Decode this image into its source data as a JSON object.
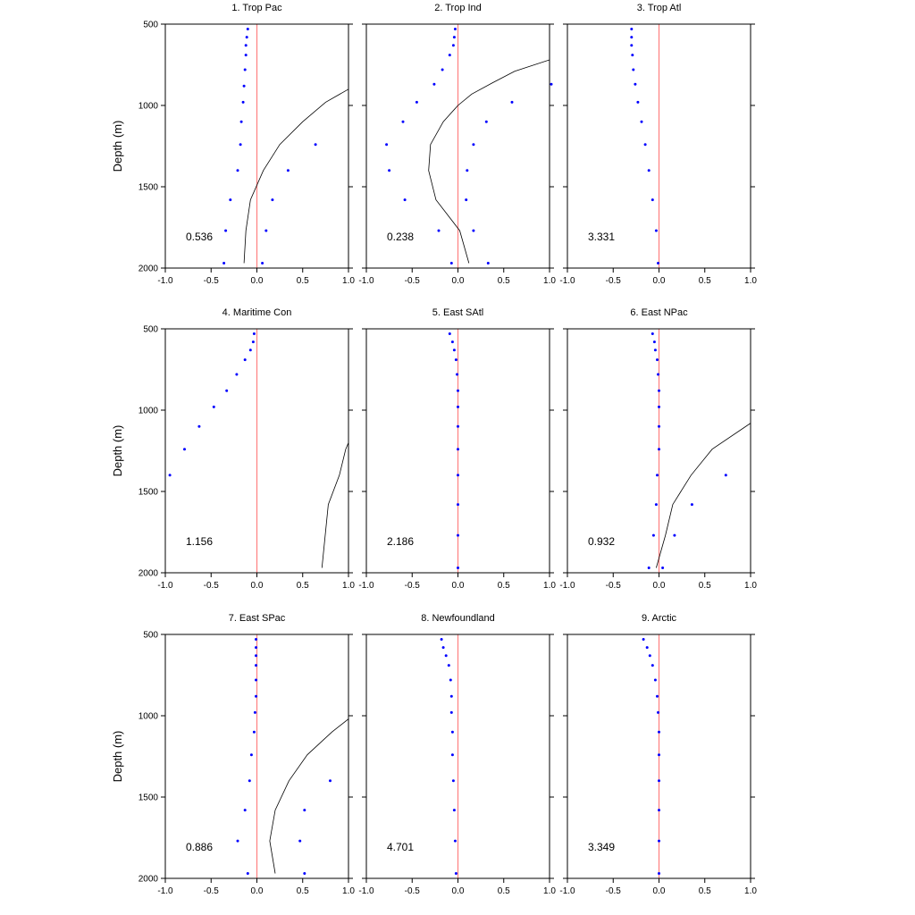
{
  "chart_data": {
    "type": "scatter",
    "ylabel": "Depth (m)",
    "xlim": [
      -1.0,
      1.0
    ],
    "ylim": [
      500,
      2000
    ],
    "y_inverted": true,
    "x_ticks": [
      "-1.0",
      "-0.5",
      "0.0",
      "0.5",
      "1.0"
    ],
    "y_ticks": [
      "500",
      "1000",
      "1500",
      "2000"
    ],
    "colors": {
      "dots": "#0000ff",
      "zero_line": "#ff8080",
      "curve": "#000000",
      "frame": "#000000"
    },
    "panels": [
      {
        "title": "1. Trop Pac",
        "annotation": "0.536",
        "points": [
          {
            "x": -0.1,
            "y": 530
          },
          {
            "x": -0.11,
            "y": 580
          },
          {
            "x": -0.12,
            "y": 630
          },
          {
            "x": -0.12,
            "y": 690
          },
          {
            "x": -0.13,
            "y": 780
          },
          {
            "x": -0.14,
            "y": 880
          },
          {
            "x": -0.15,
            "y": 980
          },
          {
            "x": -0.17,
            "y": 1100
          },
          {
            "x": -0.18,
            "y": 1240
          },
          {
            "x": 0.64,
            "y": 1240
          },
          {
            "x": -0.21,
            "y": 1400
          },
          {
            "x": 0.34,
            "y": 1400
          },
          {
            "x": -0.29,
            "y": 1580
          },
          {
            "x": 0.17,
            "y": 1580
          },
          {
            "x": -0.34,
            "y": 1770
          },
          {
            "x": 0.1,
            "y": 1770
          },
          {
            "x": -0.36,
            "y": 1970
          },
          {
            "x": 0.06,
            "y": 1970
          }
        ],
        "curve": [
          {
            "x": -0.14,
            "y": 1970
          },
          {
            "x": -0.12,
            "y": 1770
          },
          {
            "x": -0.07,
            "y": 1580
          },
          {
            "x": 0.07,
            "y": 1400
          },
          {
            "x": 0.25,
            "y": 1240
          },
          {
            "x": 0.5,
            "y": 1100
          },
          {
            "x": 0.75,
            "y": 980
          },
          {
            "x": 1.0,
            "y": 900
          }
        ]
      },
      {
        "title": "2. Trop Ind",
        "annotation": "0.238",
        "points": [
          {
            "x": -0.03,
            "y": 530
          },
          {
            "x": -0.04,
            "y": 580
          },
          {
            "x": -0.05,
            "y": 630
          },
          {
            "x": -0.09,
            "y": 690
          },
          {
            "x": -0.17,
            "y": 780
          },
          {
            "x": -0.26,
            "y": 870
          },
          {
            "x": -0.45,
            "y": 980
          },
          {
            "x": 0.59,
            "y": 980
          },
          {
            "x": -0.6,
            "y": 1100
          },
          {
            "x": 0.31,
            "y": 1100
          },
          {
            "x": -0.78,
            "y": 1240
          },
          {
            "x": 0.17,
            "y": 1240
          },
          {
            "x": -0.75,
            "y": 1400
          },
          {
            "x": 0.1,
            "y": 1400
          },
          {
            "x": -0.58,
            "y": 1580
          },
          {
            "x": 0.09,
            "y": 1580
          },
          {
            "x": -0.21,
            "y": 1770
          },
          {
            "x": 0.17,
            "y": 1770
          },
          {
            "x": -0.07,
            "y": 1970
          },
          {
            "x": 0.33,
            "y": 1970
          }
        ],
        "outlier_points": [
          {
            "x": 1.02,
            "y": 870
          }
        ],
        "curve": [
          {
            "x": 0.12,
            "y": 1970
          },
          {
            "x": 0.02,
            "y": 1770
          },
          {
            "x": -0.24,
            "y": 1580
          },
          {
            "x": -0.32,
            "y": 1400
          },
          {
            "x": -0.3,
            "y": 1240
          },
          {
            "x": -0.16,
            "y": 1100
          },
          {
            "x": 0.0,
            "y": 1000
          },
          {
            "x": 0.15,
            "y": 930
          },
          {
            "x": 0.38,
            "y": 860
          },
          {
            "x": 0.62,
            "y": 790
          },
          {
            "x": 1.0,
            "y": 720
          }
        ]
      },
      {
        "title": "3. Trop Atl",
        "annotation": "3.331",
        "points": [
          {
            "x": -0.3,
            "y": 530
          },
          {
            "x": -0.3,
            "y": 580
          },
          {
            "x": -0.3,
            "y": 630
          },
          {
            "x": -0.29,
            "y": 690
          },
          {
            "x": -0.28,
            "y": 780
          },
          {
            "x": -0.26,
            "y": 870
          },
          {
            "x": -0.23,
            "y": 980
          },
          {
            "x": -0.19,
            "y": 1100
          },
          {
            "x": -0.15,
            "y": 1240
          },
          {
            "x": -0.11,
            "y": 1400
          },
          {
            "x": -0.07,
            "y": 1580
          },
          {
            "x": -0.03,
            "y": 1770
          },
          {
            "x": -0.01,
            "y": 1970
          }
        ],
        "curve": []
      },
      {
        "title": "4. Maritime Con",
        "annotation": "1.156",
        "points": [
          {
            "x": -0.03,
            "y": 530
          },
          {
            "x": -0.04,
            "y": 580
          },
          {
            "x": -0.07,
            "y": 630
          },
          {
            "x": -0.13,
            "y": 690
          },
          {
            "x": -0.22,
            "y": 780
          },
          {
            "x": -0.33,
            "y": 880
          },
          {
            "x": -0.47,
            "y": 980
          },
          {
            "x": -0.63,
            "y": 1100
          },
          {
            "x": -0.79,
            "y": 1240
          },
          {
            "x": -0.95,
            "y": 1400
          }
        ],
        "curve": [
          {
            "x": 0.71,
            "y": 1970
          },
          {
            "x": 0.78,
            "y": 1580
          },
          {
            "x": 0.9,
            "y": 1400
          },
          {
            "x": 0.97,
            "y": 1240
          },
          {
            "x": 1.0,
            "y": 1200
          }
        ]
      },
      {
        "title": "5. East SAtl",
        "annotation": "2.186",
        "points": [
          {
            "x": -0.09,
            "y": 530
          },
          {
            "x": -0.06,
            "y": 580
          },
          {
            "x": -0.04,
            "y": 630
          },
          {
            "x": -0.02,
            "y": 690
          },
          {
            "x": -0.01,
            "y": 780
          },
          {
            "x": 0.0,
            "y": 880
          },
          {
            "x": 0.0,
            "y": 980
          },
          {
            "x": 0.0,
            "y": 1100
          },
          {
            "x": 0.0,
            "y": 1240
          },
          {
            "x": 0.0,
            "y": 1400
          },
          {
            "x": 0.0,
            "y": 1580
          },
          {
            "x": 0.0,
            "y": 1770
          },
          {
            "x": 0.0,
            "y": 1970
          }
        ],
        "curve": []
      },
      {
        "title": "6. East NPac",
        "annotation": "0.932",
        "points": [
          {
            "x": -0.07,
            "y": 530
          },
          {
            "x": -0.05,
            "y": 580
          },
          {
            "x": -0.04,
            "y": 630
          },
          {
            "x": -0.02,
            "y": 690
          },
          {
            "x": -0.01,
            "y": 780
          },
          {
            "x": 0.0,
            "y": 880
          },
          {
            "x": 0.0,
            "y": 980
          },
          {
            "x": 0.0,
            "y": 1100
          },
          {
            "x": 0.0,
            "y": 1240
          },
          {
            "x": -0.02,
            "y": 1400
          },
          {
            "x": 0.73,
            "y": 1400
          },
          {
            "x": -0.03,
            "y": 1580
          },
          {
            "x": 0.36,
            "y": 1580
          },
          {
            "x": -0.06,
            "y": 1770
          },
          {
            "x": 0.17,
            "y": 1770
          },
          {
            "x": -0.11,
            "y": 1970
          },
          {
            "x": 0.04,
            "y": 1970
          }
        ],
        "curve": [
          {
            "x": -0.03,
            "y": 1970
          },
          {
            "x": 0.07,
            "y": 1770
          },
          {
            "x": 0.15,
            "y": 1580
          },
          {
            "x": 0.35,
            "y": 1400
          },
          {
            "x": 0.58,
            "y": 1240
          },
          {
            "x": 1.0,
            "y": 1080
          }
        ]
      },
      {
        "title": "7. East SPac",
        "annotation": "0.886",
        "points": [
          {
            "x": -0.01,
            "y": 530
          },
          {
            "x": -0.01,
            "y": 580
          },
          {
            "x": -0.01,
            "y": 630
          },
          {
            "x": -0.01,
            "y": 690
          },
          {
            "x": -0.01,
            "y": 780
          },
          {
            "x": -0.01,
            "y": 880
          },
          {
            "x": -0.02,
            "y": 980
          },
          {
            "x": -0.03,
            "y": 1100
          },
          {
            "x": -0.06,
            "y": 1240
          },
          {
            "x": -0.08,
            "y": 1400
          },
          {
            "x": 0.8,
            "y": 1400
          },
          {
            "x": -0.13,
            "y": 1580
          },
          {
            "x": 0.52,
            "y": 1580
          },
          {
            "x": -0.21,
            "y": 1770
          },
          {
            "x": 0.47,
            "y": 1770
          },
          {
            "x": -0.1,
            "y": 1970
          },
          {
            "x": 0.52,
            "y": 1970
          }
        ],
        "curve": [
          {
            "x": 0.2,
            "y": 1970
          },
          {
            "x": 0.14,
            "y": 1770
          },
          {
            "x": 0.2,
            "y": 1580
          },
          {
            "x": 0.35,
            "y": 1400
          },
          {
            "x": 0.55,
            "y": 1240
          },
          {
            "x": 0.82,
            "y": 1100
          },
          {
            "x": 1.0,
            "y": 1020
          }
        ]
      },
      {
        "title": "8. Newfoundland",
        "annotation": "4.701",
        "points": [
          {
            "x": -0.18,
            "y": 530
          },
          {
            "x": -0.16,
            "y": 580
          },
          {
            "x": -0.13,
            "y": 630
          },
          {
            "x": -0.1,
            "y": 690
          },
          {
            "x": -0.08,
            "y": 780
          },
          {
            "x": -0.07,
            "y": 880
          },
          {
            "x": -0.07,
            "y": 980
          },
          {
            "x": -0.06,
            "y": 1100
          },
          {
            "x": -0.06,
            "y": 1240
          },
          {
            "x": -0.05,
            "y": 1400
          },
          {
            "x": -0.04,
            "y": 1580
          },
          {
            "x": -0.03,
            "y": 1770
          },
          {
            "x": -0.02,
            "y": 1970
          }
        ],
        "curve": []
      },
      {
        "title": "9. Arctic",
        "annotation": "3.349",
        "points": [
          {
            "x": -0.17,
            "y": 530
          },
          {
            "x": -0.13,
            "y": 580
          },
          {
            "x": -0.1,
            "y": 630
          },
          {
            "x": -0.07,
            "y": 690
          },
          {
            "x": -0.04,
            "y": 780
          },
          {
            "x": -0.02,
            "y": 880
          },
          {
            "x": -0.01,
            "y": 980
          },
          {
            "x": 0.0,
            "y": 1100
          },
          {
            "x": 0.0,
            "y": 1240
          },
          {
            "x": 0.0,
            "y": 1400
          },
          {
            "x": 0.0,
            "y": 1580
          },
          {
            "x": 0.0,
            "y": 1770
          },
          {
            "x": 0.0,
            "y": 1970
          }
        ],
        "curve": []
      }
    ]
  }
}
